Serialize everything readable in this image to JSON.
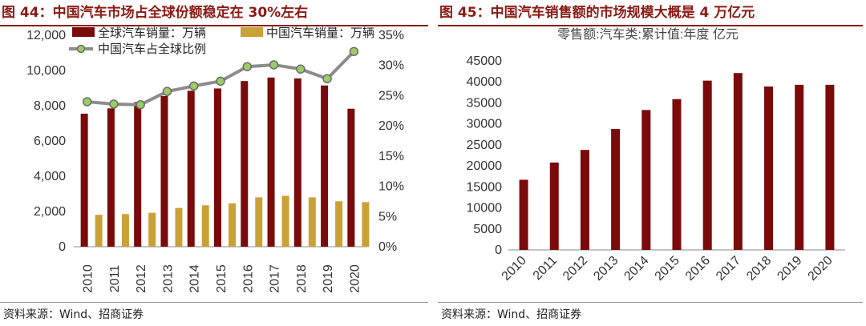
{
  "colors": {
    "title": "#8b1a14",
    "bar_dark": "#7b0a0a",
    "bar_gold": "#c9a136",
    "line": "#8c8c8c",
    "marker": "#9ccc65"
  },
  "left": {
    "figure_title": "图 44：中国汽车市场占全球份额稳定在 30%左右",
    "source": "资料来源：Wind、招商证券"
  },
  "right": {
    "figure_title": "图 45：中国汽车销售额的市场规模大概是 4 万亿元",
    "source": "资料来源：Wind、招商证券"
  },
  "chart_data": [
    {
      "type": "bar",
      "title": "",
      "categories": [
        "2010",
        "2011",
        "2012",
        "2013",
        "2014",
        "2015",
        "2016",
        "2017",
        "2018",
        "2019",
        "2020"
      ],
      "series": [
        {
          "name": "全球汽车销量：万辆",
          "kind": "bar",
          "axis": "left",
          "color": "#7b0a0a",
          "values": [
            7550,
            7850,
            8200,
            8550,
            8850,
            8980,
            9400,
            9600,
            9550,
            9150,
            7830
          ]
        },
        {
          "name": "中国汽车销量：万辆",
          "kind": "bar",
          "axis": "left",
          "color": "#c9a136",
          "values": [
            1810,
            1850,
            1930,
            2200,
            2350,
            2460,
            2800,
            2890,
            2800,
            2580,
            2530
          ]
        },
        {
          "name": "中国汽车占全球比例",
          "kind": "line",
          "axis": "right",
          "color": "#8c8c8c",
          "values": [
            24.0,
            23.6,
            23.5,
            25.7,
            26.6,
            27.4,
            29.8,
            30.1,
            29.4,
            27.8,
            32.3
          ]
        }
      ],
      "y_left": {
        "min": 0,
        "max": 12000,
        "ticks": [
          "0",
          "2,000",
          "4,000",
          "6,000",
          "8,000",
          "10,000",
          "12,000"
        ]
      },
      "y_right": {
        "min": 0,
        "max": 35,
        "ticks": [
          "0%",
          "5%",
          "10%",
          "15%",
          "20%",
          "25%",
          "30%",
          "35%"
        ]
      },
      "legend_position": "top"
    },
    {
      "type": "bar",
      "title": "零售额:汽车类:累计值:年度 亿元",
      "categories": [
        "2010",
        "2011",
        "2012",
        "2013",
        "2014",
        "2015",
        "2016",
        "2017",
        "2018",
        "2019",
        "2020"
      ],
      "series": [
        {
          "name": "零售额:汽车类:累计值:年度",
          "color": "#7b0a0a",
          "values": [
            16700,
            20800,
            23800,
            28800,
            33300,
            35900,
            40300,
            42100,
            38900,
            39300,
            39300
          ]
        }
      ],
      "y": {
        "min": 0,
        "max": 45000,
        "ticks": [
          "0",
          "5000",
          "10000",
          "15000",
          "20000",
          "25000",
          "30000",
          "35000",
          "40000",
          "45000"
        ]
      }
    }
  ]
}
